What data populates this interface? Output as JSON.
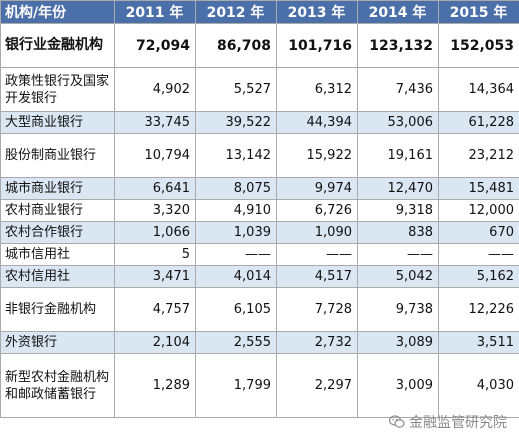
{
  "header": [
    "机构/年份",
    "2011 年",
    "2012 年",
    "2013 年",
    "2014 年",
    "2015 年"
  ],
  "rows": [
    {
      "name": "银行业金融机构",
      "values": [
        "72,094",
        "86,708",
        "101,716",
        "123,132",
        "152,053"
      ],
      "bold": true,
      "shade": false
    },
    {
      "name": "政策性银行及国家开发银行",
      "values": [
        "4,902",
        "5,527",
        "6,312",
        "7,436",
        "14,364"
      ],
      "bold": false,
      "shade": false
    },
    {
      "name": "大型商业银行",
      "values": [
        "33,745",
        "39,522",
        "44,394",
        "53,006",
        "61,228"
      ],
      "bold": false,
      "shade": true
    },
    {
      "name": "股份制商业银行",
      "values": [
        "10,794",
        "13,142",
        "15,922",
        "19,161",
        "23,212"
      ],
      "bold": false,
      "shade": false
    },
    {
      "name": "城市商业银行",
      "values": [
        "6,641",
        "8,075",
        "9,974",
        "12,470",
        "15,481"
      ],
      "bold": false,
      "shade": true
    },
    {
      "name": "农村商业银行",
      "values": [
        "3,320",
        "4,910",
        "6,726",
        "9,318",
        "12,000"
      ],
      "bold": false,
      "shade": false
    },
    {
      "name": "农村合作银行",
      "values": [
        "1,066",
        "1,039",
        "1,090",
        "838",
        "670"
      ],
      "bold": false,
      "shade": true
    },
    {
      "name": "城市信用社",
      "values": [
        "5",
        "——",
        "——",
        "——",
        "——"
      ],
      "bold": false,
      "shade": false
    },
    {
      "name": "农村信用社",
      "values": [
        "3,471",
        "4,014",
        "4,517",
        "5,042",
        "5,162"
      ],
      "bold": false,
      "shade": true
    },
    {
      "name": "非银行金融机构",
      "values": [
        "4,757",
        "6,105",
        "7,728",
        "9,738",
        "12,226"
      ],
      "bold": false,
      "shade": false
    },
    {
      "name": "外资银行",
      "values": [
        "2,104",
        "2,555",
        "2,732",
        "3,089",
        "3,511"
      ],
      "bold": false,
      "shade": true
    },
    {
      "name": "新型农村金融机构和邮政储蓄银行",
      "values": [
        "1,289",
        "1,799",
        "2,297",
        "3,009",
        "4,030"
      ],
      "bold": false,
      "shade": false
    }
  ],
  "watermark": {
    "text": "金融监管研究院",
    "icon": "wechat-icon"
  }
}
